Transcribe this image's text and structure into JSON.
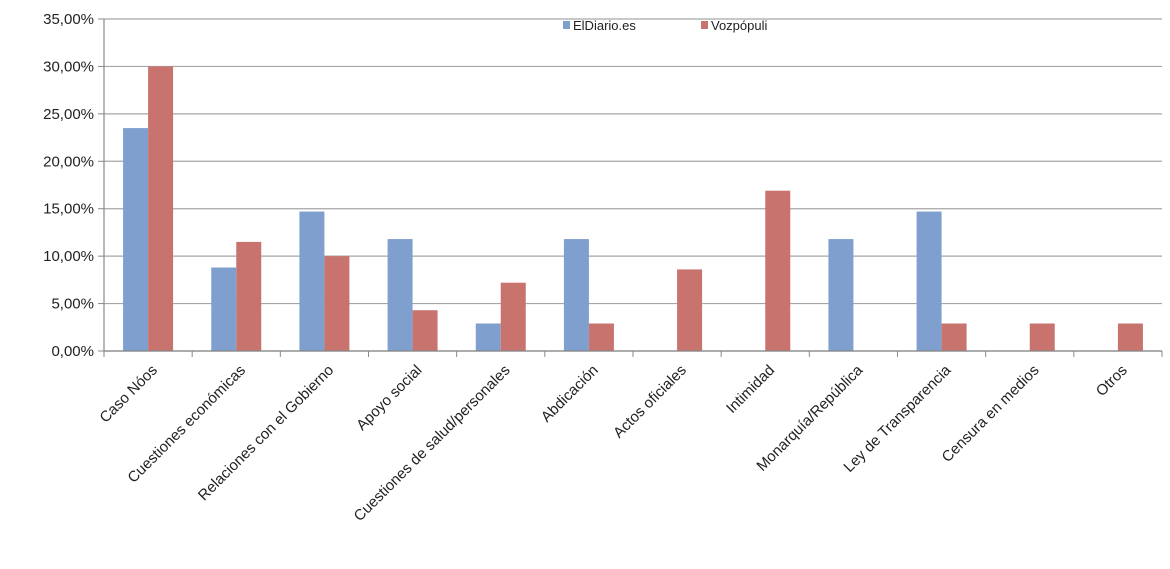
{
  "chart_data": {
    "type": "bar",
    "title": "",
    "xlabel": "",
    "ylabel": "",
    "ylim": [
      0,
      35
    ],
    "grid": true,
    "legend_position": "top-center",
    "y_ticks": [
      "0,00%",
      "5,00%",
      "10,00%",
      "15,00%",
      "20,00%",
      "25,00%",
      "30,00%",
      "35,00%"
    ],
    "categories": [
      "Caso Nóos",
      "Cuestiones económicas",
      "Relaciones con el Gobierno",
      "Apoyo social",
      "Cuestiones de salud/personales",
      "Abdicación",
      "Actos oficiales",
      "Intimidad",
      "Monarquía/República",
      "Ley de Transparencia",
      "Censura en medios",
      "Otros"
    ],
    "series": [
      {
        "name": "ElDiario.es",
        "color": "#7f9fcf",
        "values": [
          23.5,
          8.8,
          14.7,
          11.8,
          2.9,
          11.8,
          0,
          0,
          11.8,
          14.7,
          0,
          0
        ]
      },
      {
        "name": "Vozpópuli",
        "color": "#c9736e",
        "values": [
          30.0,
          11.5,
          10.0,
          4.3,
          7.2,
          2.9,
          8.6,
          16.9,
          0,
          2.9,
          2.9,
          2.9
        ]
      }
    ]
  }
}
